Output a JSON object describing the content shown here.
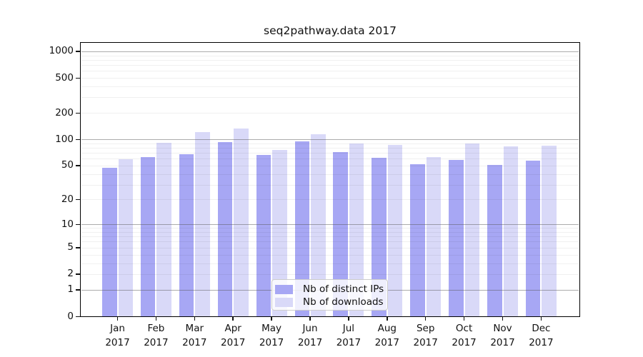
{
  "chart_data": {
    "type": "bar",
    "title": "seq2pathway.data 2017",
    "categories": [
      "Jan 2017",
      "Feb 2017",
      "Mar 2017",
      "Apr 2017",
      "May 2017",
      "Jun 2017",
      "Jul 2017",
      "Aug 2017",
      "Sep 2017",
      "Oct 2017",
      "Nov 2017",
      "Dec 2017"
    ],
    "series": [
      {
        "name": "Nb of distinct IPs",
        "color": "#a7a7f4",
        "values": [
          47,
          62,
          67,
          93,
          66,
          95,
          72,
          61,
          52,
          58,
          51,
          57
        ]
      },
      {
        "name": "Nb of downloads",
        "color": "#d9d9f8",
        "values": [
          59,
          91,
          122,
          133,
          76,
          115,
          90,
          86,
          63,
          89,
          83,
          84
        ]
      }
    ],
    "yticks": [
      0,
      1,
      2,
      5,
      10,
      20,
      50,
      100,
      200,
      500,
      1000
    ],
    "ylim": [
      0,
      1250
    ],
    "yscale": "log1p",
    "xlabel": "",
    "ylabel": "",
    "grid": "horizontal-major-and-minor",
    "legend_position": "inside-bottom-center",
    "colors": {
      "background": "#ffffff",
      "spine": "#000000",
      "major_grid": "#bdbdbd",
      "minor_grid": "#ececec",
      "text": "#111111"
    }
  }
}
